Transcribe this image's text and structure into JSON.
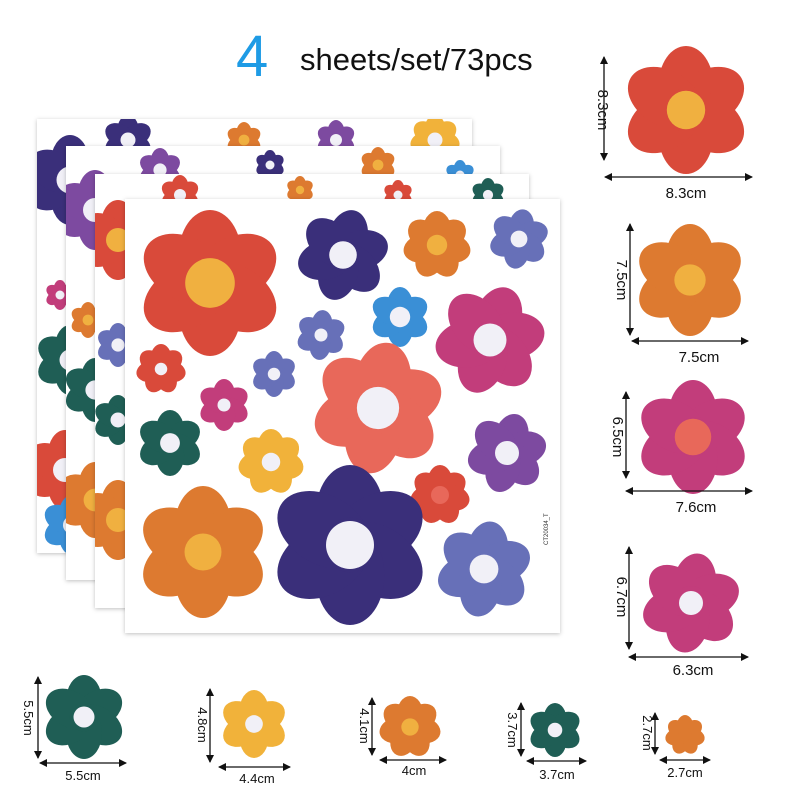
{
  "headline": {
    "count": "4",
    "text": "sheets/set/73pcs"
  },
  "sheet_code": "CT20034_T",
  "colors": {
    "accent_blue": "#1e9be5",
    "red": "#d94a3a",
    "orange": "#dd7a30",
    "pink": "#c23d7b",
    "navy": "#3a2f7a",
    "teal": "#1f5e55",
    "yellow": "#f1b23a",
    "periwinkle": "#6770b8",
    "purple": "#7d4aa0",
    "coral": "#e8685a",
    "sky": "#3a8fd6",
    "center_white": "#f1f0f7",
    "center_yellow": "#f0b040"
  },
  "sizes": [
    {
      "id": "s1",
      "height": "8.3cm",
      "width": "8.3cm"
    },
    {
      "id": "s2",
      "height": "7.5cm",
      "width": "7.5cm"
    },
    {
      "id": "s3",
      "height": "6.5cm",
      "width": "7.6cm"
    },
    {
      "id": "s4",
      "height": "6.7cm",
      "width": "6.3cm"
    },
    {
      "id": "s5",
      "height": "5.5cm",
      "width": "5.5cm"
    },
    {
      "id": "s6",
      "height": "4.8cm",
      "width": "4.4cm"
    },
    {
      "id": "s7",
      "height": "4.1cm",
      "width": "4cm"
    },
    {
      "id": "s8",
      "height": "3.7cm",
      "width": "3.7cm"
    },
    {
      "id": "s9",
      "height": "2.7cm",
      "width": "2.7cm"
    }
  ]
}
